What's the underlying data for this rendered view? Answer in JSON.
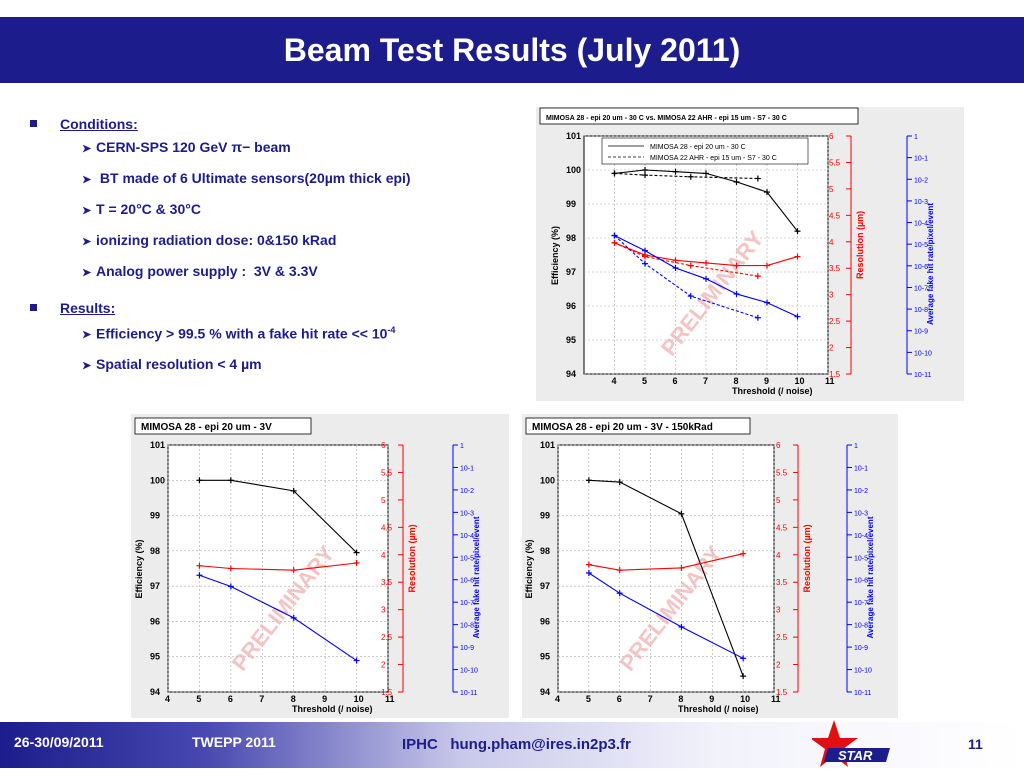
{
  "slide": {
    "title": "Beam Test Results (July 2011)"
  },
  "bullets": {
    "conditions_label": "Conditions:",
    "conditions": [
      "CERN-SPS 120 GeV π− beam",
      " BT made of 6 Ultimate sensors(20µm thick epi)",
      "T = 20°C & 30°C",
      "ionizing radiation dose: 0&150 kRad",
      "Analog power supply :  3V & 3.3V"
    ],
    "results_label": "Results:",
    "result_1_main": "Efficiency > 99.5 % with a fake hit rate << 10",
    "result_1_sup": "-4",
    "result_2": "Spatial resolution < 4 µm"
  },
  "footer": {
    "date": "26-30/09/2011",
    "conference": "TWEPP 2011",
    "contact": "IPHC   hung.pham@ires.in2p3.fr",
    "page_number": "11",
    "logo_text": "STAR"
  },
  "colors": {
    "slide_blue": "#1c1c8c",
    "efficiency": "#000000",
    "resolution": "#ff0000",
    "fake_rate": "#0000ff",
    "watermark": "#f0b0b0"
  },
  "chart_data": [
    {
      "id": "top",
      "type": "line",
      "title": "MIMOSA 28 - epi 20 um - 30 C vs. MIMOSA 22 AHR - epi 15 um - S7 - 30 C",
      "xlabel": "Threshold (/ noise)",
      "ylabel": "Efficiency (%)",
      "ylabel_res": "Resolution (µm)",
      "ylabel_fake": "Average fake hit rate/pixel/event",
      "watermark": "PRELIMINARY",
      "xlim": [
        3,
        11
      ],
      "ylim": [
        94,
        101
      ],
      "ylim_res": [
        1.5,
        6
      ],
      "ylim_fake_exp": [
        -11,
        0
      ],
      "x_ticks": [
        "4",
        "5",
        "6",
        "7",
        "8",
        "9",
        "10",
        "11"
      ],
      "y_ticks": [
        "94",
        "95",
        "96",
        "97",
        "98",
        "99",
        "100",
        "101"
      ],
      "res_ticks": [
        "1.5",
        "2",
        "2.5",
        "3",
        "3.5",
        "4",
        "4.5",
        "5",
        "5.5",
        "6"
      ],
      "fake_ticks": [
        "1",
        "10-1",
        "10-2",
        "10-3",
        "10-4",
        "10-5",
        "10-6",
        "10-7",
        "10-8",
        "10-9",
        "10-10",
        "10-11"
      ],
      "legend": [
        {
          "name": "MIMOSA 28 - epi 20 um - 30 C",
          "style": "solid"
        },
        {
          "name": "MIMOSA 22 AHR - epi 15 um - S7 - 30 C",
          "style": "dashed"
        }
      ],
      "series": [
        {
          "metric": "efficiency",
          "style": "solid",
          "x": [
            4,
            5,
            6,
            7,
            8,
            9,
            10
          ],
          "y": [
            99.9,
            100.0,
            99.95,
            99.9,
            99.65,
            99.35,
            98.2
          ]
        },
        {
          "metric": "efficiency",
          "style": "dashed",
          "x": [
            4,
            5,
            6.5,
            8.7
          ],
          "y": [
            99.9,
            99.85,
            99.8,
            99.75
          ]
        },
        {
          "metric": "resolution",
          "style": "solid",
          "x": [
            4,
            5,
            6,
            7,
            8,
            9,
            10
          ],
          "y": [
            3.98,
            3.75,
            3.65,
            3.6,
            3.55,
            3.55,
            3.72
          ]
        },
        {
          "metric": "resolution",
          "style": "dashed",
          "x": [
            4,
            5,
            6.5,
            8.7
          ],
          "y": [
            3.98,
            3.72,
            3.55,
            3.35
          ]
        },
        {
          "metric": "fake_rate",
          "style": "solid",
          "x": [
            4,
            5,
            6,
            7,
            8,
            9,
            10
          ],
          "y_exp": [
            -4.6,
            -5.3,
            -6.1,
            -6.6,
            -7.3,
            -7.7,
            -8.35
          ]
        },
        {
          "metric": "fake_rate",
          "style": "dashed",
          "x": [
            4,
            5,
            6.5,
            8.7
          ],
          "y_exp": [
            -4.6,
            -5.9,
            -7.4,
            -8.4
          ]
        }
      ]
    },
    {
      "id": "bottom-left",
      "type": "line",
      "title": "MIMOSA 28 - epi 20 um - 3V",
      "xlabel": "Threshold (/ noise)",
      "ylabel": "Efficiency (%)",
      "ylabel_res": "Resolution (µm)",
      "ylabel_fake": "Average fake hit rate/pixel/event",
      "watermark": "PRELIMINARY",
      "xlim": [
        4,
        11
      ],
      "ylim": [
        94,
        101
      ],
      "ylim_res": [
        1.5,
        6
      ],
      "ylim_fake_exp": [
        -11,
        0
      ],
      "x_ticks": [
        "4",
        "5",
        "6",
        "7",
        "8",
        "9",
        "10",
        "11"
      ],
      "y_ticks": [
        "94",
        "95",
        "96",
        "97",
        "98",
        "99",
        "100",
        "101"
      ],
      "res_ticks": [
        "1.5",
        "2",
        "2.5",
        "3",
        "3.5",
        "4",
        "4.5",
        "5",
        "5.5",
        "6"
      ],
      "fake_ticks": [
        "1",
        "10-1",
        "10-2",
        "10-3",
        "10-4",
        "10-5",
        "10-6",
        "10-7",
        "10-8",
        "10-9",
        "10-10",
        "10-11"
      ],
      "series": [
        {
          "metric": "efficiency",
          "style": "solid",
          "x": [
            5,
            6,
            8,
            10
          ],
          "y": [
            100.0,
            100.0,
            99.7,
            97.95
          ]
        },
        {
          "metric": "resolution",
          "style": "solid",
          "x": [
            5,
            6,
            8,
            10
          ],
          "y": [
            3.8,
            3.75,
            3.72,
            3.85
          ]
        },
        {
          "metric": "fake_rate",
          "style": "solid",
          "x": [
            5,
            6,
            8,
            10
          ],
          "y_exp": [
            -5.8,
            -6.3,
            -7.7,
            -9.6
          ]
        }
      ]
    },
    {
      "id": "bottom-right",
      "type": "line",
      "title": "MIMOSA 28 - epi 20 um - 3V - 150kRad",
      "xlabel": "Threshold (/ noise)",
      "ylabel": "Efficiency (%)",
      "ylabel_res": "Resolution (µm)",
      "ylabel_fake": "Average fake hit rate/pixel/event",
      "watermark": "PRELIMINARY",
      "xlim": [
        4,
        11
      ],
      "ylim": [
        94,
        101
      ],
      "ylim_res": [
        1.5,
        6
      ],
      "ylim_fake_exp": [
        -11,
        0
      ],
      "x_ticks": [
        "4",
        "5",
        "6",
        "7",
        "8",
        "9",
        "10",
        "11"
      ],
      "y_ticks": [
        "94",
        "95",
        "96",
        "97",
        "98",
        "99",
        "100",
        "101"
      ],
      "res_ticks": [
        "1.5",
        "2",
        "2.5",
        "3",
        "3.5",
        "4",
        "4.5",
        "5",
        "5.5",
        "6"
      ],
      "fake_ticks": [
        "1",
        "10-1",
        "10-2",
        "10-3",
        "10-4",
        "10-5",
        "10-6",
        "10-7",
        "10-8",
        "10-9",
        "10-10",
        "10-11"
      ],
      "series": [
        {
          "metric": "efficiency",
          "style": "solid",
          "x": [
            5,
            6,
            8,
            10
          ],
          "y": [
            100.0,
            99.95,
            99.05,
            94.45
          ]
        },
        {
          "metric": "resolution",
          "style": "solid",
          "x": [
            5,
            6,
            8,
            10
          ],
          "y": [
            3.82,
            3.72,
            3.76,
            4.02
          ]
        },
        {
          "metric": "fake_rate",
          "style": "solid",
          "x": [
            5,
            6,
            8,
            10
          ],
          "y_exp": [
            -5.7,
            -6.6,
            -8.1,
            -9.5
          ]
        }
      ]
    }
  ]
}
